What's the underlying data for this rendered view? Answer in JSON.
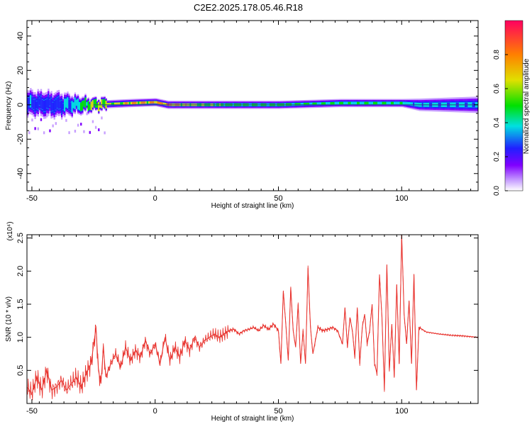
{
  "title": "C2E2.2025.178.05.46.R18",
  "colors": {
    "snr_line": "#e8322d",
    "axis": "#000000",
    "background": "#ffffff"
  },
  "chart_data": [
    {
      "type": "heatmap",
      "title": "C2E2.2025.178.05.46.R18",
      "xlabel": "Height of straight line (km)",
      "ylabel": "Frequency (Hz)",
      "xlim": [
        -52,
        131
      ],
      "ylim": [
        -50,
        49
      ],
      "x_ticks": [
        -50,
        0,
        50,
        100
      ],
      "y_ticks": [
        40,
        20,
        0,
        -20,
        -40
      ],
      "x_tick_labels": [
        "-50",
        "0",
        "50",
        "100"
      ],
      "y_tick_labels": [
        "40",
        "20",
        "0",
        "-20",
        "-40"
      ],
      "colorbar": {
        "label": "Normalized spectral amplitude",
        "range": [
          0,
          1
        ],
        "ticks": [
          0.0,
          0.2,
          0.4,
          0.6,
          0.8
        ],
        "tick_labels": [
          "0.0",
          "0.2",
          "0.4",
          "0.6",
          "0.8"
        ],
        "colormap": [
          "#ffffff",
          "#c8a0ff",
          "#8000ff",
          "#2020ff",
          "#00e0e0",
          "#00e000",
          "#e0e000",
          "#ff8000",
          "#ff0060"
        ]
      },
      "ridge": [
        {
          "x": -52,
          "freq": 1,
          "halfwidth": 5,
          "level": 0.45
        },
        {
          "x": -40,
          "freq": 0,
          "halfwidth": 5,
          "level": 0.4
        },
        {
          "x": -25,
          "freq": 0,
          "halfwidth": 2,
          "level": 0.75
        },
        {
          "x": -10,
          "freq": 1,
          "halfwidth": 2,
          "level": 0.85
        },
        {
          "x": 0,
          "freq": 1.5,
          "halfwidth": 2,
          "level": 0.9
        },
        {
          "x": 5,
          "freq": 0,
          "halfwidth": 2,
          "level": 0.95
        },
        {
          "x": 20,
          "freq": 0,
          "halfwidth": 2,
          "level": 0.7
        },
        {
          "x": 50,
          "freq": 0,
          "halfwidth": 2,
          "level": 0.65
        },
        {
          "x": 75,
          "freq": 1,
          "halfwidth": 2,
          "level": 0.6
        },
        {
          "x": 100,
          "freq": 1,
          "halfwidth": 2,
          "level": 0.6
        },
        {
          "x": 107,
          "freq": 0,
          "halfwidth": 3,
          "level": 0.5
        },
        {
          "x": 131,
          "freq": 0,
          "halfwidth": 4,
          "level": 0.5
        }
      ]
    },
    {
      "type": "line",
      "xlabel": "Height of straight line (km)",
      "ylabel": "SNR (10 * v/v)",
      "y_multiplier_label": "(x10⁴)",
      "xlim": [
        -52,
        131
      ],
      "ylim": [
        0,
        2.55
      ],
      "x_ticks": [
        -50,
        0,
        50,
        100
      ],
      "y_ticks": [
        0.5,
        1.0,
        1.5,
        2.0,
        2.5
      ],
      "x_tick_labels": [
        "-50",
        "0",
        "50",
        "100"
      ],
      "y_tick_labels": [
        "0.5",
        "1.0",
        "1.5",
        "2.0",
        "2.5"
      ],
      "series": [
        {
          "x": [
            -52,
            -50,
            -48,
            -46,
            -44,
            -42,
            -40,
            -38,
            -36,
            -34,
            -32,
            -30,
            -28,
            -26,
            -24,
            -23,
            -22,
            -21,
            -20,
            -18,
            -16,
            -14,
            -12,
            -10,
            -8,
            -6,
            -4,
            -2,
            0,
            2,
            4,
            6,
            8,
            10,
            12,
            14,
            16,
            18,
            20,
            22,
            24,
            26,
            28,
            30,
            32,
            34,
            36,
            38,
            40,
            42,
            44,
            46,
            48,
            50,
            51,
            52,
            53,
            54,
            55,
            56,
            57,
            58,
            59,
            60,
            61,
            62,
            63,
            64,
            66,
            68,
            70,
            72,
            74,
            76,
            77,
            78,
            79,
            80,
            81,
            82,
            83,
            84,
            85,
            86,
            87,
            88,
            89,
            90,
            91,
            92,
            93,
            94,
            95,
            96,
            97,
            98,
            99,
            100,
            101,
            102,
            103,
            104,
            105,
            106,
            107,
            110,
            115,
            120,
            125,
            131
          ],
          "y": [
            0.25,
            0.15,
            0.4,
            0.2,
            0.5,
            0.2,
            0.25,
            0.35,
            0.2,
            0.3,
            0.4,
            0.25,
            0.45,
            0.6,
            1.15,
            0.5,
            0.3,
            0.85,
            0.4,
            0.6,
            0.75,
            0.55,
            0.85,
            0.65,
            0.8,
            0.7,
            0.95,
            0.75,
            0.9,
            0.6,
            1.0,
            0.65,
            0.85,
            0.7,
            0.95,
            0.8,
            1.0,
            0.85,
            0.95,
            1.0,
            1.05,
            1.0,
            1.05,
            1.1,
            1.12,
            1.05,
            1.1,
            1.12,
            1.15,
            1.1,
            1.18,
            1.12,
            1.2,
            1.1,
            0.6,
            1.7,
            1.2,
            0.65,
            1.75,
            1.1,
            0.85,
            1.5,
            0.6,
            1.1,
            0.6,
            2.05,
            1.15,
            0.75,
            1.15,
            1.1,
            1.12,
            1.15,
            1.1,
            0.9,
            1.45,
            0.85,
            1.3,
            1.1,
            0.7,
            1.45,
            0.6,
            1.15,
            1.35,
            0.9,
            1.1,
            1.5,
            0.6,
            0.45,
            1.95,
            1.3,
            0.2,
            2.1,
            0.5,
            1.2,
            0.4,
            1.8,
            0.6,
            2.55,
            1.35,
            0.9,
            1.55,
            0.6,
            1.95,
            0.2,
            1.15,
            1.08,
            1.05,
            1.03,
            1.02,
            1.0
          ]
        }
      ]
    }
  ]
}
